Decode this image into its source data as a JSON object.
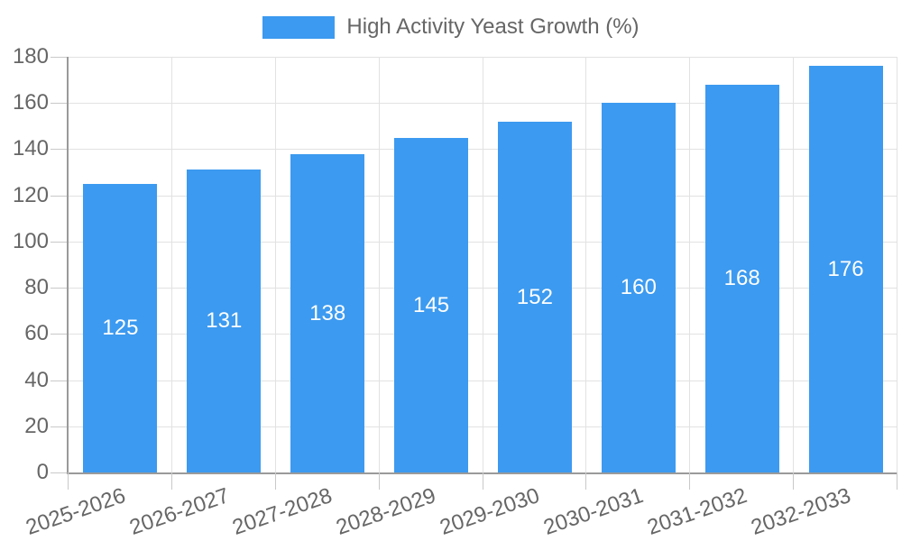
{
  "chart_data": {
    "type": "bar",
    "title": "",
    "legend": {
      "label": "High Activity Yeast Growth (%)",
      "position": "top"
    },
    "categories": [
      "2025-2026",
      "2026-2027",
      "2027-2028",
      "2028-2029",
      "2029-2030",
      "2030-2031",
      "2031-2032",
      "2032-2033"
    ],
    "values": [
      125,
      131,
      138,
      145,
      152,
      160,
      168,
      176
    ],
    "value_labels_visible": true,
    "xlabel": "",
    "ylabel": "",
    "ylim": [
      0,
      180
    ],
    "ytick_step": 20,
    "yticks": [
      0,
      20,
      40,
      60,
      80,
      100,
      120,
      140,
      160,
      180
    ],
    "grid": "on",
    "x_label_rotation_deg": -19,
    "colors": {
      "bar": "#3C9AF0",
      "value_label": "#FFFFFF",
      "axis_text": "#666666",
      "grid_line": "#E2E2E2",
      "tick_mark": "#C9C9C9",
      "axis_line": "#9A9A9A",
      "background": "#FFFFFF"
    }
  }
}
